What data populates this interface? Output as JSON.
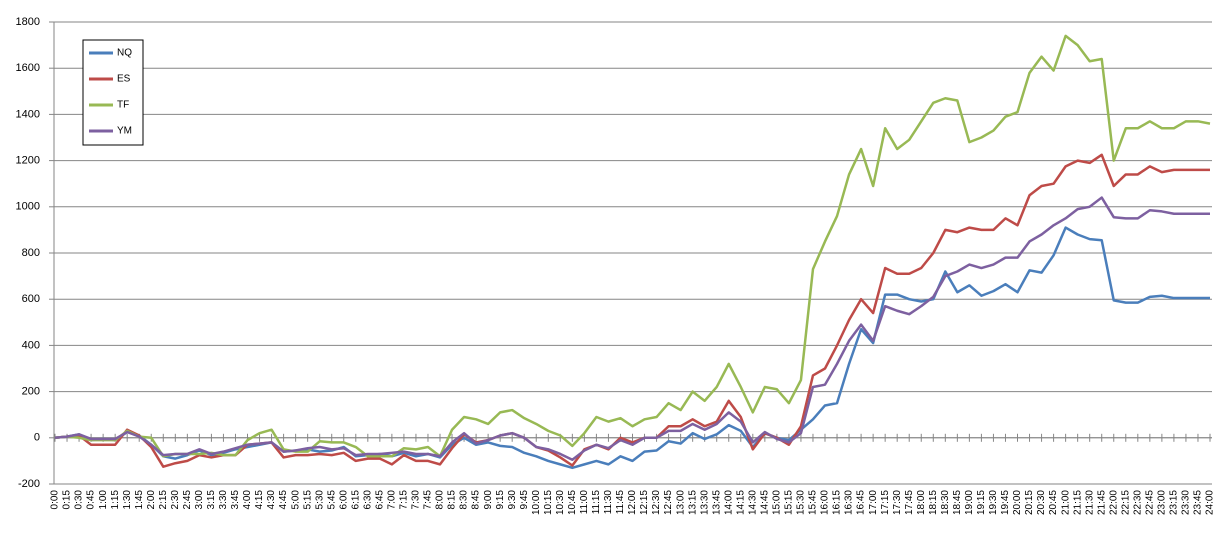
{
  "chart_data": {
    "type": "line",
    "categories": [
      "0:00",
      "0:15",
      "0:30",
      "0:45",
      "1:00",
      "1:15",
      "1:30",
      "1:45",
      "2:00",
      "2:15",
      "2:30",
      "2:45",
      "3:00",
      "3:15",
      "3:30",
      "3:45",
      "4:00",
      "4:15",
      "4:30",
      "4:45",
      "5:00",
      "5:15",
      "5:30",
      "5:45",
      "6:00",
      "6:15",
      "6:30",
      "6:45",
      "7:00",
      "7:15",
      "7:30",
      "7:45",
      "8:00",
      "8:15",
      "8:30",
      "8:45",
      "9:00",
      "9:15",
      "9:30",
      "9:45",
      "10:00",
      "10:15",
      "10:30",
      "10:45",
      "11:00",
      "11:15",
      "11:30",
      "11:45",
      "12:00",
      "12:15",
      "12:30",
      "12:45",
      "13:00",
      "13:15",
      "13:30",
      "13:45",
      "14:00",
      "14:15",
      "14:30",
      "14:45",
      "15:00",
      "15:15",
      "15:30",
      "15:45",
      "16:00",
      "16:15",
      "16:30",
      "16:45",
      "17:00",
      "17:15",
      "17:30",
      "17:45",
      "18:00",
      "18:15",
      "18:30",
      "18:45",
      "19:00",
      "19:15",
      "19:30",
      "19:45",
      "20:00",
      "20:15",
      "20:30",
      "20:45",
      "21:00",
      "21:15",
      "21:30",
      "21:45",
      "22:00",
      "22:15",
      "22:30",
      "22:45",
      "23:00",
      "23:15",
      "23:30",
      "23:45",
      "24:00"
    ],
    "series": [
      {
        "name": "NQ",
        "color": "#4a7ebb",
        "values": [
          0,
          5,
          15,
          -10,
          -5,
          -10,
          25,
          10,
          -30,
          -80,
          -90,
          -75,
          -55,
          -75,
          -65,
          -50,
          -40,
          -30,
          -20,
          -60,
          -55,
          -50,
          -60,
          -55,
          -40,
          -80,
          -75,
          -70,
          -80,
          -65,
          -80,
          -70,
          -85,
          -30,
          0,
          -30,
          -20,
          -35,
          -40,
          -65,
          -80,
          -100,
          -115,
          -130,
          -115,
          -100,
          -115,
          -80,
          -100,
          -60,
          -55,
          -15,
          -25,
          20,
          -5,
          15,
          55,
          30,
          -40,
          20,
          0,
          -10,
          35,
          80,
          140,
          150,
          320,
          470,
          410,
          620,
          620,
          600,
          590,
          600,
          720,
          630,
          660,
          615,
          635,
          665,
          630,
          725,
          715,
          790,
          910,
          880,
          860,
          855,
          595,
          585,
          585,
          610,
          615,
          605,
          605,
          605,
          605
        ]
      },
      {
        "name": "ES",
        "color": "#be4b48",
        "values": [
          0,
          5,
          10,
          -30,
          -30,
          -30,
          35,
          10,
          -40,
          -125,
          -110,
          -100,
          -75,
          -85,
          -75,
          -75,
          -30,
          -25,
          -20,
          -85,
          -75,
          -75,
          -70,
          -75,
          -65,
          -100,
          -90,
          -90,
          -115,
          -75,
          -100,
          -100,
          -115,
          -45,
          15,
          -20,
          -10,
          10,
          20,
          0,
          -40,
          -55,
          -85,
          -120,
          -50,
          -30,
          -50,
          0,
          -20,
          0,
          0,
          50,
          50,
          80,
          50,
          70,
          160,
          90,
          -50,
          20,
          0,
          -30,
          50,
          270,
          300,
          400,
          510,
          600,
          540,
          735,
          710,
          710,
          735,
          800,
          900,
          890,
          910,
          900,
          900,
          950,
          920,
          1050,
          1090,
          1100,
          1175,
          1200,
          1190,
          1225,
          1090,
          1140,
          1140,
          1175,
          1150,
          1160,
          1160,
          1160,
          1160
        ]
      },
      {
        "name": "TF",
        "color": "#98b954",
        "values": [
          0,
          5,
          0,
          -10,
          -10,
          -10,
          30,
          5,
          0,
          -80,
          -70,
          -70,
          -70,
          -65,
          -75,
          -75,
          -10,
          20,
          35,
          -50,
          -60,
          -60,
          -15,
          -20,
          -20,
          -40,
          -80,
          -80,
          -80,
          -45,
          -50,
          -40,
          -80,
          35,
          90,
          80,
          60,
          110,
          120,
          85,
          60,
          30,
          10,
          -35,
          20,
          90,
          70,
          85,
          50,
          80,
          90,
          150,
          120,
          200,
          160,
          220,
          320,
          220,
          110,
          220,
          210,
          150,
          250,
          730,
          850,
          960,
          1140,
          1250,
          1090,
          1340,
          1250,
          1290,
          1370,
          1450,
          1470,
          1460,
          1280,
          1300,
          1330,
          1390,
          1410,
          1580,
          1650,
          1590,
          1740,
          1700,
          1630,
          1640,
          1200,
          1340,
          1340,
          1370,
          1340,
          1340,
          1370,
          1370,
          1360
        ]
      },
      {
        "name": "YM",
        "color": "#7d60a0",
        "values": [
          0,
          5,
          15,
          -5,
          -5,
          -5,
          25,
          5,
          -30,
          -75,
          -70,
          -70,
          -50,
          -70,
          -60,
          -45,
          -30,
          -25,
          -20,
          -60,
          -55,
          -45,
          -40,
          -50,
          -45,
          -75,
          -70,
          -70,
          -65,
          -60,
          -70,
          -70,
          -80,
          -20,
          20,
          -25,
          -10,
          10,
          20,
          0,
          -40,
          -50,
          -70,
          -95,
          -55,
          -30,
          -45,
          -10,
          -30,
          0,
          0,
          30,
          30,
          60,
          35,
          60,
          110,
          70,
          -20,
          25,
          -5,
          -20,
          20,
          220,
          230,
          320,
          420,
          490,
          420,
          570,
          550,
          535,
          570,
          610,
          700,
          720,
          750,
          735,
          750,
          780,
          780,
          850,
          880,
          920,
          950,
          990,
          1000,
          1040,
          955,
          950,
          950,
          985,
          980,
          970,
          970,
          970,
          970
        ]
      }
    ],
    "ylim": [
      -200,
      1800
    ],
    "yticks": [
      -200,
      0,
      200,
      400,
      600,
      800,
      1000,
      1200,
      1400,
      1600,
      1800
    ],
    "grid": true,
    "legend": "upper left"
  }
}
